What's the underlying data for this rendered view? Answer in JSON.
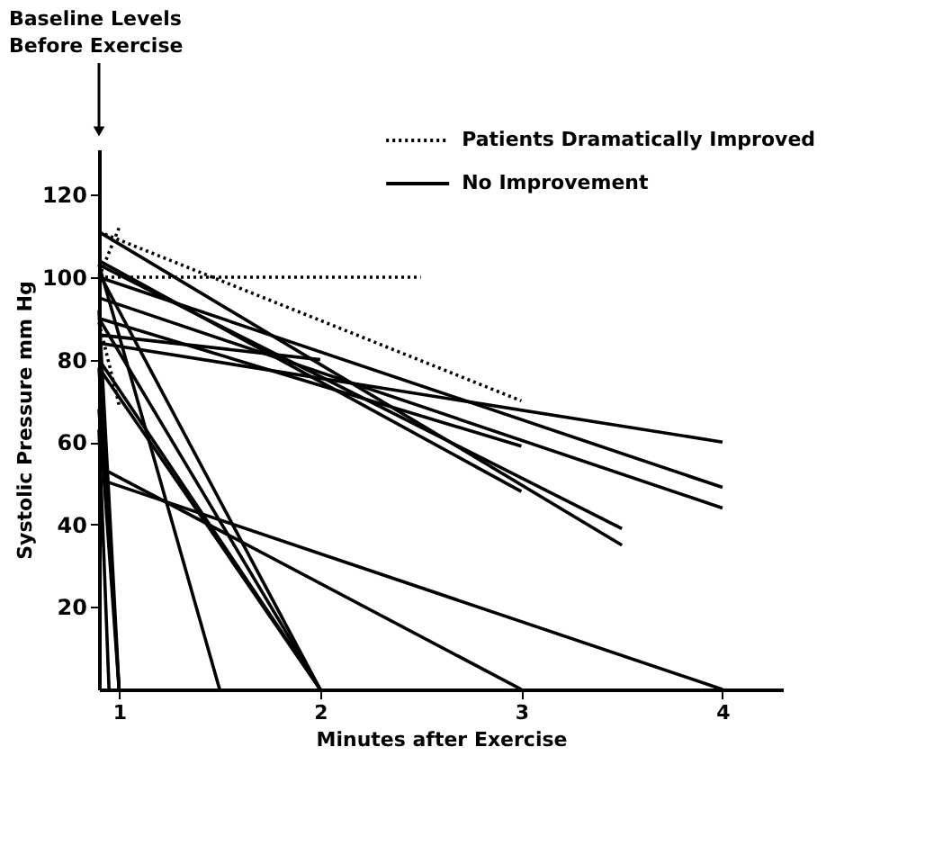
{
  "chart_data": {
    "type": "line",
    "xlabel": "Minutes after Exercise",
    "ylabel": "Systolic Pressure  mm  Hg",
    "annotations": [
      "Baseline Levels\nBefore Exercise"
    ],
    "xlim": [
      0.9,
      4.3
    ],
    "ylim": [
      0,
      131
    ],
    "xticks": [
      1,
      2,
      3,
      4
    ],
    "yticks": [
      20,
      40,
      60,
      80,
      100,
      120
    ],
    "grid": false,
    "legend": "top right",
    "marker": "none",
    "series": [
      {
        "name": "Patients Dramatically Improved",
        "color": "#000000",
        "line_style": "dotted",
        "x": [
          0.9,
          1
        ],
        "values": [
          100,
          112
        ]
      },
      {
        "color": "#000000",
        "line_style": "dotted",
        "x": [
          0.9,
          2.5
        ],
        "values": [
          100,
          100
        ]
      },
      {
        "color": "#000000",
        "line_style": "dotted",
        "x": [
          0.9,
          3
        ],
        "values": [
          111,
          70
        ]
      },
      {
        "color": "#000000",
        "line_style": "dotted",
        "x": [
          0.9,
          1
        ],
        "values": [
          89,
          69
        ]
      },
      {
        "name": "No Improvement",
        "color": "#000000",
        "line_style": "solid",
        "x": [
          0.9,
          3.5
        ],
        "values": [
          111,
          35
        ]
      },
      {
        "color": "#000000",
        "line_style": "solid",
        "x": [
          0.9,
          3
        ],
        "values": [
          104,
          48
        ]
      },
      {
        "color": "#000000",
        "line_style": "solid",
        "x": [
          0.9,
          3.5
        ],
        "values": [
          103,
          39
        ]
      },
      {
        "color": "#000000",
        "line_style": "solid",
        "x": [
          0.9,
          4
        ],
        "values": [
          100,
          49
        ]
      },
      {
        "color": "#000000",
        "line_style": "solid",
        "x": [
          0.9,
          4
        ],
        "values": [
          95,
          44
        ]
      },
      {
        "color": "#000000",
        "line_style": "solid",
        "x": [
          0.9,
          3
        ],
        "values": [
          90,
          59
        ]
      },
      {
        "color": "#000000",
        "line_style": "solid",
        "x": [
          0.9,
          2
        ],
        "values": [
          86,
          80
        ]
      },
      {
        "color": "#000000",
        "line_style": "solid",
        "x": [
          0.9,
          4
        ],
        "values": [
          84,
          60
        ]
      },
      {
        "color": "#000000",
        "line_style": "solid",
        "x": [
          0.9,
          1.5
        ],
        "values": [
          103,
          0
        ]
      },
      {
        "color": "#000000",
        "line_style": "solid",
        "x": [
          0.9,
          2
        ],
        "values": [
          101,
          0
        ]
      },
      {
        "color": "#000000",
        "line_style": "solid",
        "x": [
          0.9,
          1
        ],
        "values": [
          92,
          0
        ]
      },
      {
        "color": "#000000",
        "line_style": "solid",
        "x": [
          0.9,
          2
        ],
        "values": [
          90,
          0
        ]
      },
      {
        "color": "#000000",
        "line_style": "solid",
        "x": [
          0.9,
          2
        ],
        "values": [
          80,
          0
        ]
      },
      {
        "color": "#000000",
        "line_style": "solid",
        "x": [
          0.9,
          2
        ],
        "values": [
          78,
          0
        ]
      },
      {
        "color": "#000000",
        "line_style": "solid",
        "x": [
          0.9,
          1
        ],
        "values": [
          78,
          0
        ]
      },
      {
        "color": "#000000",
        "line_style": "solid",
        "x": [
          0.9,
          1
        ],
        "values": [
          68,
          0
        ]
      },
      {
        "color": "#000000",
        "line_style": "solid",
        "x": [
          0.9,
          0.95
        ],
        "values": [
          63,
          0
        ]
      },
      {
        "color": "#000000",
        "line_style": "solid",
        "x": [
          0.9,
          3
        ],
        "values": [
          54,
          0
        ]
      },
      {
        "color": "#000000",
        "line_style": "solid",
        "x": [
          0.9,
          4
        ],
        "values": [
          51,
          0
        ]
      }
    ]
  }
}
